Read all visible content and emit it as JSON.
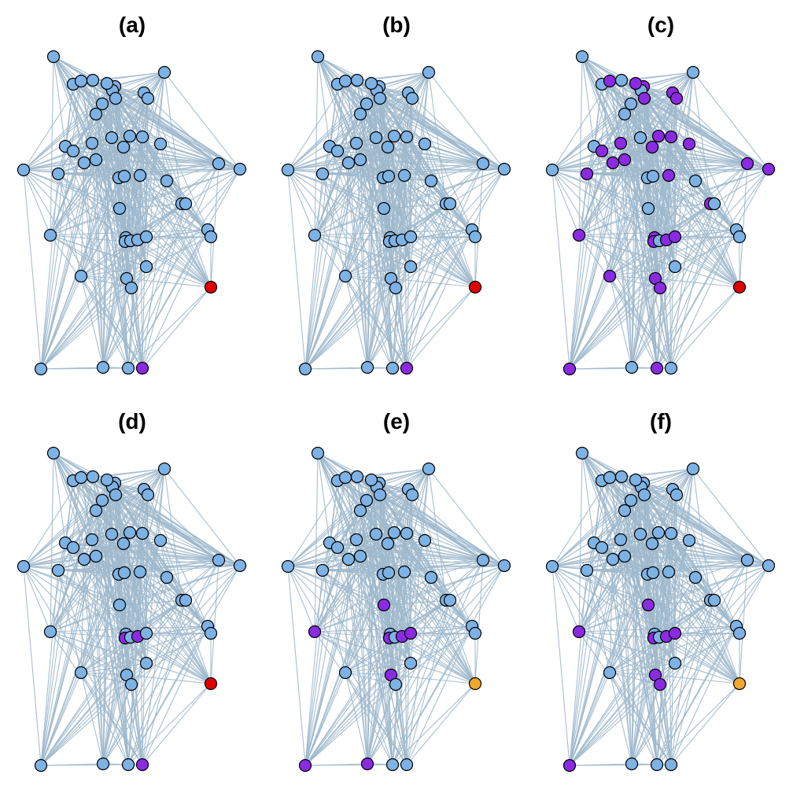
{
  "colors": {
    "edge": "#9fb8cc",
    "blue": "#7eb2e4",
    "purple": "#8a2be2",
    "red": "#e00000",
    "orange": "#f0a830"
  },
  "panels": [
    {
      "label": "(a)",
      "purple": [
        49
      ],
      "red": [
        48
      ],
      "orange": []
    },
    {
      "label": "(b)",
      "purple": [
        49
      ],
      "red": [
        48
      ],
      "orange": []
    },
    {
      "label": "(c)",
      "purple": [
        3,
        6,
        8,
        9,
        13,
        14,
        16,
        17,
        18,
        19,
        20,
        21,
        22,
        24,
        25,
        28,
        30,
        33,
        34,
        37,
        39,
        40,
        41,
        42,
        44,
        45,
        47,
        50,
        51
      ],
      "red": [
        48
      ],
      "orange": []
    },
    {
      "label": "(d)",
      "purple": [
        37,
        39,
        49
      ],
      "red": [
        48
      ],
      "orange": []
    },
    {
      "label": "(e)",
      "purple": [
        32,
        33,
        37,
        39,
        40,
        42,
        45,
        46
      ],
      "red": [],
      "orange": [
        48
      ]
    },
    {
      "label": "(f)",
      "purple": [
        32,
        33,
        37,
        39,
        40,
        42,
        44,
        45
      ],
      "red": [],
      "orange": [
        48
      ]
    }
  ]
}
